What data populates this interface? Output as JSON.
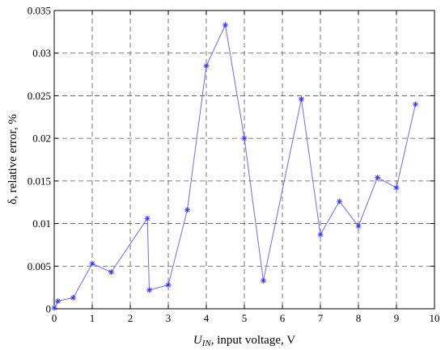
{
  "chart_data": {
    "type": "line",
    "title": "",
    "xlabel_italic": "U",
    "xlabel_sub": "IN",
    "xlabel_rest": ", input voltage, V",
    "ylabel": "δ, relative error, %",
    "xlim": [
      0,
      10
    ],
    "ylim": [
      0,
      0.035
    ],
    "x_ticks": [
      0,
      1,
      2,
      3,
      4,
      5,
      6,
      7,
      8,
      9,
      10
    ],
    "x_tick_labels": [
      "0",
      "1",
      "2",
      "3",
      "4",
      "5",
      "6",
      "7",
      "8",
      "9",
      "10"
    ],
    "y_ticks": [
      0,
      0.005,
      0.01,
      0.015,
      0.02,
      0.025,
      0.03,
      0.035
    ],
    "y_tick_labels": [
      "0",
      "0.005",
      "0.01",
      "0.015",
      "0.02",
      "0.025",
      "0.03",
      "0.035"
    ],
    "grid": true,
    "marker": "asterisk",
    "line_color": "#6a6aff",
    "marker_color": "#3030ff",
    "series": [
      {
        "x": [
          0,
          0.1,
          0.5,
          1.0,
          1.5,
          2.45,
          2.5,
          3.0,
          3.5,
          4.0,
          4.5,
          5.0,
          5.5,
          6.5,
          7.0,
          7.5,
          8.0,
          8.5,
          9.0,
          9.5
        ],
        "y": [
          0.0001,
          0.0009,
          0.0013,
          0.0053,
          0.0043,
          0.0106,
          0.0022,
          0.0028,
          0.0116,
          0.0285,
          0.0333,
          0.02,
          0.0033,
          0.0246,
          0.0087,
          0.0126,
          0.0097,
          0.0154,
          0.0142,
          0.024
        ]
      }
    ]
  }
}
